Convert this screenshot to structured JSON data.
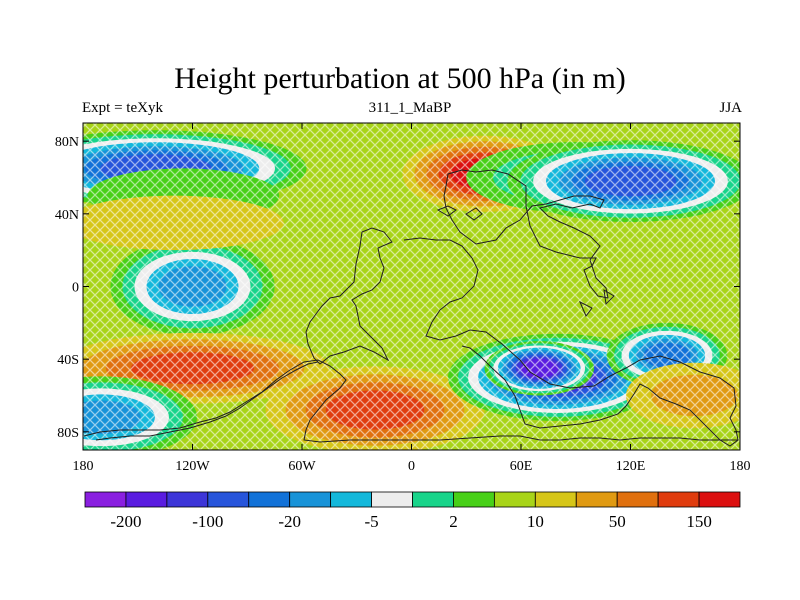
{
  "title": "Height perturbation at 500 hPa (in m)",
  "subtitle_left": "Expt = teXyk",
  "subtitle_center": "311_1_MaBP",
  "subtitle_right": "JJA",
  "colors": {
    "palette": [
      "#8a1fe0",
      "#5a1ce0",
      "#3d35d8",
      "#2755db",
      "#1272d8",
      "#1893d8",
      "#14b8db",
      "#ededed",
      "#18d48a",
      "#48d018",
      "#a8d418",
      "#d6c618",
      "#e09a12",
      "#e0700e",
      "#e03c0e",
      "#dc1010"
    ],
    "land_outline": "#202020",
    "stipple": "#ffffff"
  },
  "colorbar": {
    "labels": [
      {
        "text": "-200",
        "after_box": 1
      },
      {
        "text": "-100",
        "after_box": 3
      },
      {
        "text": "-20",
        "after_box": 5
      },
      {
        "text": "-5",
        "after_box": 7
      },
      {
        "text": "2",
        "after_box": 9
      },
      {
        "text": "10",
        "after_box": 11
      },
      {
        "text": "50",
        "after_box": 13
      },
      {
        "text": "150",
        "after_box": 15
      }
    ]
  },
  "chart_data": {
    "type": "heatmap",
    "projection": "cylindrical-equidistant",
    "xlim": [
      -180,
      180
    ],
    "ylim": [
      -90,
      90
    ],
    "x_ticks": [
      {
        "lon": -180,
        "label": "180"
      },
      {
        "lon": -120,
        "label": "120W"
      },
      {
        "lon": -60,
        "label": "60W"
      },
      {
        "lon": 0,
        "label": "0"
      },
      {
        "lon": 60,
        "label": "60E"
      },
      {
        "lon": 120,
        "label": "120E"
      },
      {
        "lon": 180,
        "label": "180"
      }
    ],
    "y_ticks": [
      {
        "lat": 80,
        "label": "80N"
      },
      {
        "lat": 40,
        "label": "40N"
      },
      {
        "lat": 0,
        "label": "0"
      },
      {
        "lat": -40,
        "label": "40S"
      },
      {
        "lat": -80,
        "label": "80S"
      }
    ],
    "field_background_level": 10,
    "anomalies": [
      {
        "lon": -140,
        "lat": 65,
        "rlon": 55,
        "rlat": 14,
        "level": 3
      },
      {
        "lon": -125,
        "lat": 50,
        "rlon": 35,
        "rlat": 10,
        "level": 9
      },
      {
        "lon": 40,
        "lat": 62,
        "rlon": 30,
        "rlat": 14,
        "level": 15
      },
      {
        "lon": 90,
        "lat": 60,
        "rlon": 40,
        "rlat": 13,
        "level": 7
      },
      {
        "lon": 120,
        "lat": 58,
        "rlon": 45,
        "rlat": 15,
        "level": 3
      },
      {
        "lon": -120,
        "lat": 0,
        "rlon": 30,
        "rlat": 18,
        "level": 5
      },
      {
        "lon": -130,
        "lat": 35,
        "rlon": 40,
        "rlat": 10,
        "level": 11
      },
      {
        "lon": -120,
        "lat": -45,
        "rlon": 50,
        "rlat": 13,
        "level": 14
      },
      {
        "lon": -20,
        "lat": -68,
        "rlon": 40,
        "rlat": 16,
        "level": 14
      },
      {
        "lon": 80,
        "lat": -50,
        "rlon": 40,
        "rlat": 16,
        "level": 2
      },
      {
        "lon": 70,
        "lat": -45,
        "rlon": 20,
        "rlat": 10,
        "level": 1
      },
      {
        "lon": 140,
        "lat": -38,
        "rlon": 22,
        "rlat": 12,
        "level": 4
      },
      {
        "lon": 155,
        "lat": -60,
        "rlon": 25,
        "rlat": 12,
        "level": 12
      },
      {
        "lon": -170,
        "lat": -72,
        "rlon": 35,
        "rlat": 15,
        "level": 5
      }
    ]
  }
}
